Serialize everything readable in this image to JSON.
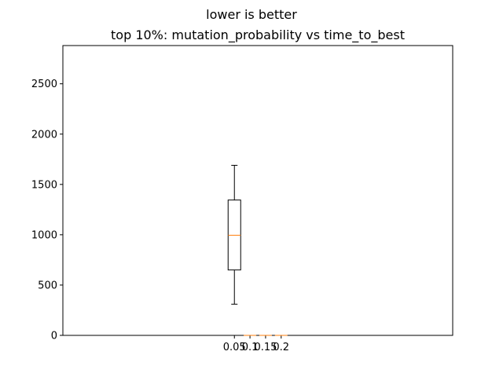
{
  "chart_data": {
    "type": "box",
    "suptitle": "lower is better",
    "title": "top 10%: mutation_probability vs time_to_best",
    "xlabel": "",
    "ylabel": "",
    "categories": [
      "0.05",
      "0.1",
      "0.15",
      "0.2"
    ],
    "boxes": [
      {
        "category": "0.05",
        "whisker_low": 310,
        "q1": 650,
        "median": 995,
        "q3": 1345,
        "whisker_high": 1690
      },
      {
        "category": "0.1",
        "whisker_low": 0,
        "q1": 0,
        "median": 0,
        "q3": 0,
        "whisker_high": 0
      },
      {
        "category": "0.15",
        "whisker_low": 0,
        "q1": 0,
        "median": 0,
        "q3": 0,
        "whisker_high": 0
      },
      {
        "category": "0.2",
        "whisker_low": 0,
        "q1": 0,
        "median": 0,
        "q3": 0,
        "whisker_high": 0
      }
    ],
    "category_positions": [
      0.05,
      0.1,
      0.15,
      0.2
    ],
    "xlim": [
      -0.5,
      0.75
    ],
    "ylim": [
      0,
      2880
    ],
    "yticks": [
      0,
      500,
      1000,
      1500,
      2000,
      2500
    ],
    "grid": false,
    "colors": {
      "box": "#000000",
      "median": "#ff7f0e",
      "axes": "#000000"
    }
  }
}
